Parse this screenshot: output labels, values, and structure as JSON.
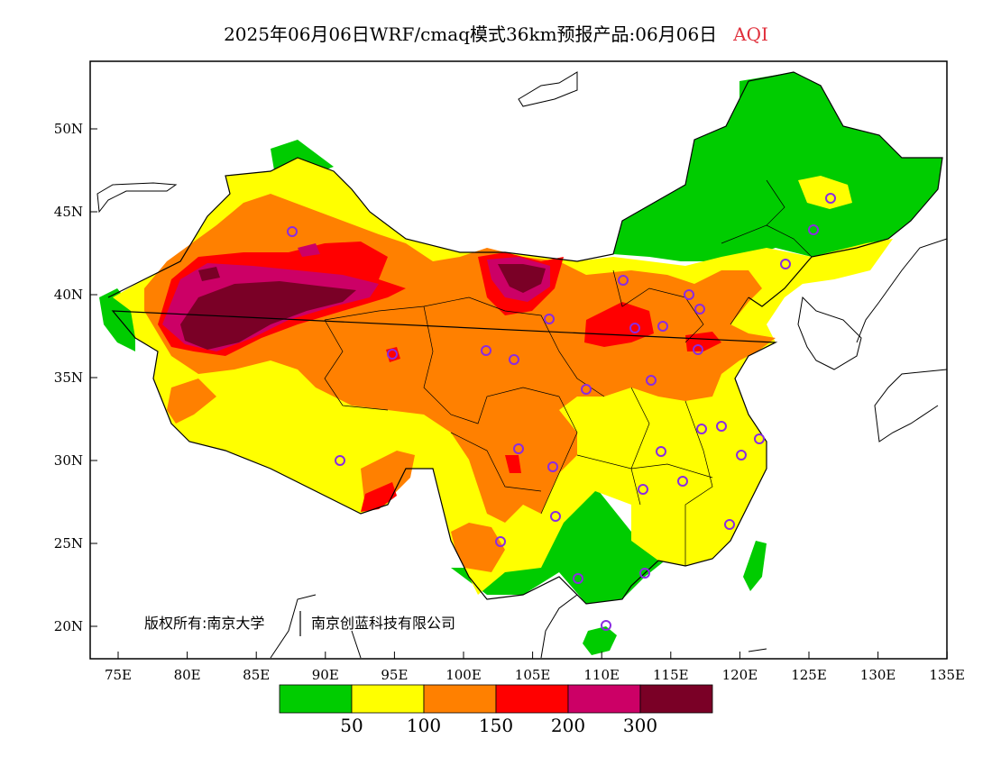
{
  "title": {
    "main": "2025年06月06日WRF/cmaq模式36km预报产品:06月06日",
    "variable": "AQI",
    "variable_color": "#e0303c"
  },
  "axes": {
    "x_labels": [
      "75E",
      "80E",
      "85E",
      "90E",
      "95E",
      "100E",
      "105E",
      "110E",
      "115E",
      "120E",
      "125E",
      "130E",
      "135E"
    ],
    "y_labels": [
      "50N",
      "45N",
      "40N",
      "35N",
      "30N",
      "25N",
      "20N"
    ]
  },
  "copyright": {
    "part1": "版权所有:南京大学",
    "part2": "南京创蓝科技有限公司"
  },
  "legend": {
    "colors": [
      "#00cc00",
      "#ffff00",
      "#ff8000",
      "#ff0000",
      "#cc0066",
      "#7a0026"
    ],
    "labels": [
      "50",
      "100",
      "150",
      "200",
      "300"
    ]
  },
  "station_marker_color": "#8a2be2"
}
